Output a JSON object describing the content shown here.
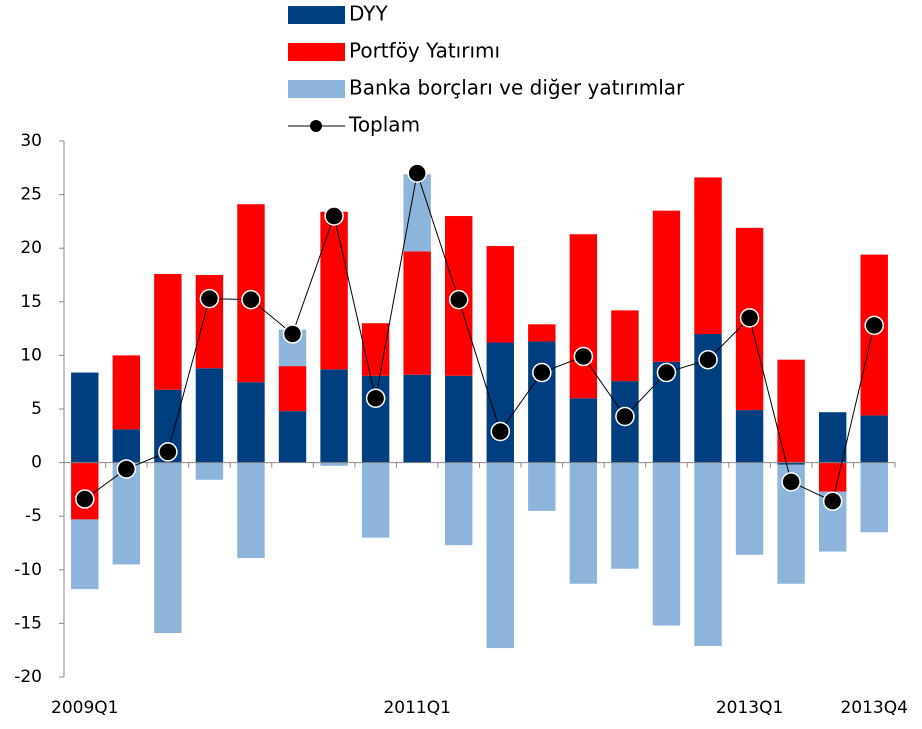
{
  "chart_data": {
    "type": "bar",
    "stacked": true,
    "categories": [
      "2009Q1",
      null,
      null,
      null,
      null,
      null,
      null,
      null,
      "2011Q1",
      null,
      null,
      null,
      null,
      null,
      null,
      null,
      "2013Q1",
      null,
      null,
      "2013Q4"
    ],
    "series": [
      {
        "name": "DYY",
        "color": "#003f7f",
        "values": [
          8.4,
          3.1,
          6.8,
          8.8,
          7.5,
          4.8,
          8.7,
          8.1,
          8.2,
          8.1,
          11.2,
          11.3,
          6.0,
          7.6,
          9.4,
          12.0,
          4.9,
          -0.2,
          4.7,
          4.4
        ]
      },
      {
        "name": "Portföy Yatırımı",
        "color": "#ff0000",
        "values": [
          -5.3,
          6.9,
          10.8,
          8.7,
          16.6,
          4.2,
          14.7,
          4.9,
          11.5,
          14.9,
          9.0,
          1.6,
          15.3,
          6.6,
          14.1,
          14.6,
          17.0,
          9.6,
          -2.7,
          15.0
        ]
      },
      {
        "name": "Banka borçları ve diğer yatırımlar",
        "color": "#8db4db",
        "values": [
          -6.5,
          -9.5,
          -15.9,
          -1.6,
          -8.9,
          3.4,
          -0.3,
          -7.0,
          7.2,
          -7.7,
          -17.3,
          -4.5,
          -11.3,
          -9.9,
          -15.2,
          -17.1,
          -8.6,
          -11.1,
          -5.6,
          -6.5
        ]
      },
      {
        "name": "Toplam",
        "color": "#000000",
        "type": "line",
        "values": [
          -3.4,
          -0.6,
          1.0,
          15.3,
          15.2,
          12.0,
          23.0,
          6.0,
          27.0,
          15.2,
          2.9,
          8.4,
          9.9,
          4.3,
          8.4,
          9.6,
          13.5,
          -1.8,
          -3.6,
          12.8
        ]
      }
    ],
    "ylim": [
      -20,
      30
    ],
    "yticks": [
      -20,
      -15,
      -10,
      -5,
      0,
      5,
      10,
      15,
      20,
      25,
      30
    ],
    "grid": false,
    "legend": "top"
  }
}
